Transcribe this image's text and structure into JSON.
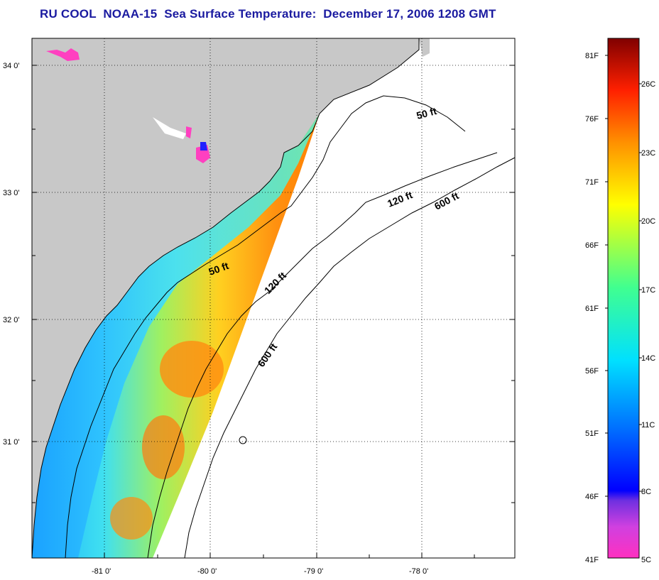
{
  "title": "RU COOL  NOAA-15  Sea Surface Temperature:  December 17, 2006 1208 GMT",
  "map": {
    "lat_labels": [
      "34 0'",
      "33 0'",
      "32 0'",
      "31 0'"
    ],
    "lon_labels": [
      "-81 0'",
      "-80 0'",
      "-79 0'",
      "-78 0'"
    ],
    "contours": [
      "50 ft",
      "120 ft",
      "600 ft",
      "50 ft",
      "120 ft",
      "600 ft"
    ],
    "colors": {
      "land": "#c8c8c8",
      "ocean_nodata": "#ffffff"
    }
  },
  "colorbar": {
    "fahrenheit": [
      "81F",
      "76F",
      "71F",
      "66F",
      "61F",
      "56F",
      "51F",
      "46F",
      "41F"
    ],
    "celsius": [
      "26C",
      "23C",
      "20C",
      "17C",
      "14C",
      "11C",
      "8C",
      "5C"
    ],
    "colors": [
      "#ff40c0",
      "#c040ff",
      "#0000ff",
      "#0080ff",
      "#00e0ff",
      "#40ff80",
      "#ffff00",
      "#ff8000",
      "#ff0000",
      "#800000"
    ]
  }
}
